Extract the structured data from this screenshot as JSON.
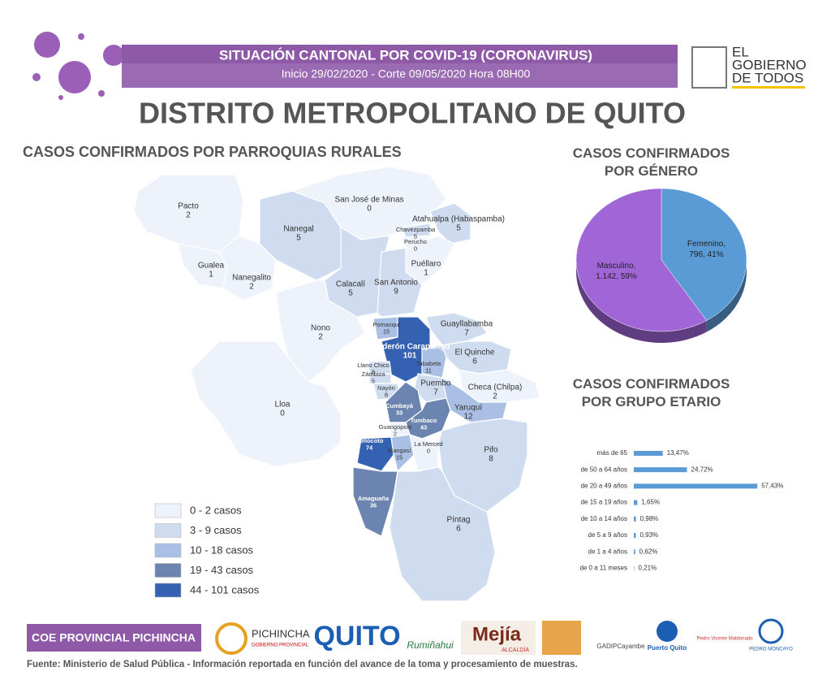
{
  "header": {
    "title": "SITUACIÓN CANTONAL POR COVID-19 (CORONAVIRUS)",
    "subtitle": "Inicio 29/02/2020 - Corte 09/05/2020 Hora 08H00",
    "logo": [
      "EL",
      "GOBIERNO",
      "DE TODOS"
    ]
  },
  "main_title": "DISTRITO METROPOLITANO DE QUITO",
  "map": {
    "title": "CASOS CONFIRMADOS POR PARROQUIAS RURALES",
    "parishes": [
      {
        "name": "Pacto",
        "cases": 2
      },
      {
        "name": "Gualea",
        "cases": 1
      },
      {
        "name": "Nanegalito",
        "cases": 2
      },
      {
        "name": "Nanegal",
        "cases": 5
      },
      {
        "name": "San José de Minas",
        "cases": 0
      },
      {
        "name": "Atahualpa (Habaspamba)",
        "cases": 5
      },
      {
        "name": "Chavezpamba",
        "cases": 5
      },
      {
        "name": "Perucho",
        "cases": 0
      },
      {
        "name": "Puéllaro",
        "cases": 1
      },
      {
        "name": "Calacalí",
        "cases": 5
      },
      {
        "name": "San Antonio",
        "cases": 9
      },
      {
        "name": "Nono",
        "cases": 2
      },
      {
        "name": "Pomasqui",
        "cases": 15
      },
      {
        "name": "Calderón Carapungo",
        "cases": 101
      },
      {
        "name": "Guayllabamba",
        "cases": 7
      },
      {
        "name": "El Quinche",
        "cases": 6
      },
      {
        "name": "Llano Chico",
        "cases": 8
      },
      {
        "name": "Zámbiza",
        "cases": 5
      },
      {
        "name": "Tababela",
        "cases": 11
      },
      {
        "name": "Puembo",
        "cases": 7
      },
      {
        "name": "Checa (Chilpa)",
        "cases": 2
      },
      {
        "name": "Nayón",
        "cases": 8
      },
      {
        "name": "Yaruquí",
        "cases": 12
      },
      {
        "name": "Cumbayá",
        "cases": 33
      },
      {
        "name": "Tumbaco",
        "cases": 43
      },
      {
        "name": "Lloa",
        "cases": 0
      },
      {
        "name": "Guangopolo",
        "cases": 2
      },
      {
        "name": "Conocoto",
        "cases": 74
      },
      {
        "name": "Alangasí",
        "cases": 15
      },
      {
        "name": "La Merced",
        "cases": 0
      },
      {
        "name": "Pifo",
        "cases": 8
      },
      {
        "name": "Amaguaña",
        "cases": 36
      },
      {
        "name": "Píntag",
        "cases": 6
      }
    ],
    "legend": [
      {
        "label": "0 - 2 casos",
        "min": 0,
        "max": 2,
        "color": "#eef3fb"
      },
      {
        "label": "3 - 9  casos",
        "min": 3,
        "max": 9,
        "color": "#cfdcef"
      },
      {
        "label": "10 - 18 casos",
        "min": 10,
        "max": 18,
        "color": "#a9bfe3"
      },
      {
        "label": "19 - 43 casos",
        "min": 19,
        "max": 43,
        "color": "#6b84b0"
      },
      {
        "label": "44 - 101 casos",
        "min": 44,
        "max": 101,
        "color": "#3561b3"
      }
    ]
  },
  "chart_data": [
    {
      "type": "pie",
      "title": "CASOS CONFIRMADOS POR GÉNERO",
      "categories": [
        "Femenino,",
        "Masculino,"
      ],
      "values": [
        796,
        1142
      ],
      "value_labels": [
        "796, 41%",
        "1.142, 59%"
      ],
      "colors": [
        "#5b9bd5",
        "#a066d8"
      ]
    },
    {
      "type": "bar",
      "horizontal": true,
      "title": "CASOS CONFIRMADOS POR GRUPO ETARIO",
      "categories": [
        "más de 65",
        "de 50 a 64 años",
        "de 20 a 49 años",
        "de 15 a 19 años",
        "de 10 a 14 años",
        "de 5 a 9 años",
        "de 1 a 4 años",
        "de 0 a 11 meses"
      ],
      "values": [
        13.47,
        24.72,
        57.43,
        1.65,
        0.98,
        0.93,
        0.62,
        0.21
      ],
      "value_labels": [
        "13,47%",
        "24,72%",
        "57,43%",
        "1,65%",
        "0,98%",
        "0,93%",
        "0,62%",
        "0,21%"
      ],
      "color": "#5b9bd5"
    }
  ],
  "footer": {
    "coe": "COE PROVINCIAL PICHINCHA",
    "logos": [
      "PICHINCHA",
      "GOBIERNO PROVINCIAL",
      "QUITO",
      "Rumiñahui",
      "Mejía",
      "ALCALDÍA",
      "GADIPCayambe",
      "Puerto Quito",
      "Pedro Vicente Maldonado",
      "PEDRO MONCAYO"
    ],
    "source": "Fuente: Ministerio de Salud Pública - Información reportada en función del avance de la toma y procesamiento de muestras."
  }
}
